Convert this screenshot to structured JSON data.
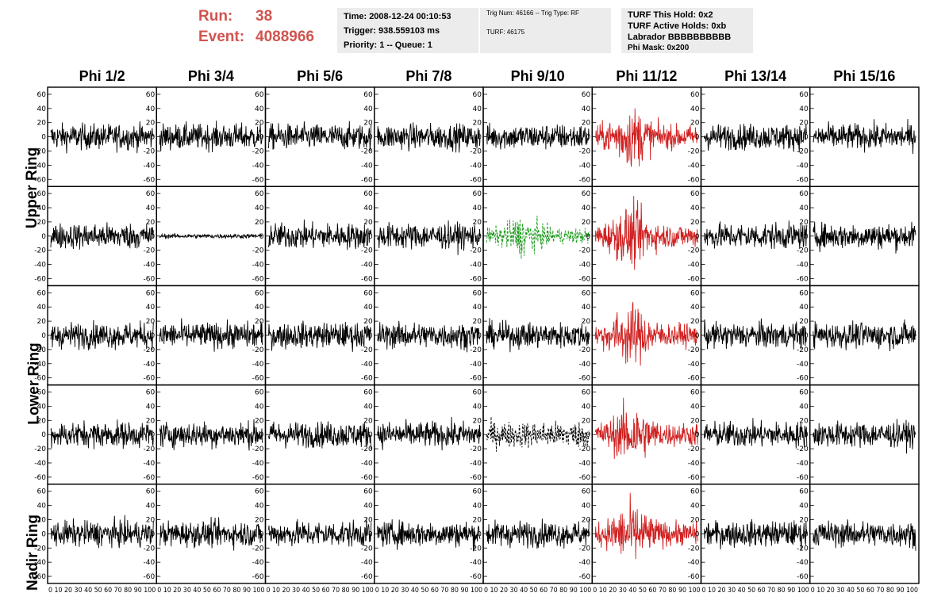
{
  "run": {
    "run_label": "Run:",
    "run_value": "38",
    "event_label": "Event:",
    "event_value": "4088966"
  },
  "info": {
    "time": "Time: 2008-12-24 00:10:53",
    "trigger": "Trigger: 938.559103 ms",
    "priority": "Priority: 1 -- Queue: 1",
    "trig_num": "Trig Num: 46166 -- Trig Type: RF",
    "turf": "TURF: 46175",
    "turf_hold": "TURF This Hold: 0x2",
    "turf_active": "TURF Active Holds: 0xb",
    "labrador": "Labrador BBBBBBBBBB",
    "phi_mask": "Phi Mask: 0x200"
  },
  "columns": [
    "Phi 1/2",
    "Phi 3/4",
    "Phi 5/6",
    "Phi 7/8",
    "Phi 9/10",
    "Phi 11/12",
    "Phi 13/14",
    "Phi 15/16"
  ],
  "row_labels": [
    "Upper Ring",
    "Lower Ring",
    "Nadir Ring"
  ],
  "colors": {
    "trace_black": "#000000",
    "trace_red": "#d02020",
    "trace_green": "#1a9a1a",
    "title_red": "#d0544f"
  },
  "y_ticks": [
    "60",
    "40",
    "20",
    "0",
    "-20",
    "-40",
    "-60"
  ],
  "x_tick_text": "0 10 20 30 40 50 60 70 80 90 100",
  "chart_data": {
    "type": "line",
    "rows": 5,
    "cols": 8,
    "xlim": [
      0,
      100
    ],
    "ylim": [
      -70,
      70
    ],
    "highlight": [
      {
        "row": 0,
        "col": 5,
        "color": "red",
        "style": "solid"
      },
      {
        "row": 1,
        "col": 4,
        "color": "green",
        "style": "dashed"
      },
      {
        "row": 1,
        "col": 5,
        "color": "red",
        "style": "solid"
      },
      {
        "row": 2,
        "col": 5,
        "color": "red",
        "style": "solid"
      },
      {
        "row": 3,
        "col": 4,
        "color": "black",
        "style": "dashed"
      },
      {
        "row": 3,
        "col": 5,
        "color": "red",
        "style": "solid"
      },
      {
        "row": 4,
        "col": 5,
        "color": "red",
        "style": "solid"
      }
    ],
    "quiet_panels": [
      {
        "row": 1,
        "col": 1
      }
    ]
  }
}
